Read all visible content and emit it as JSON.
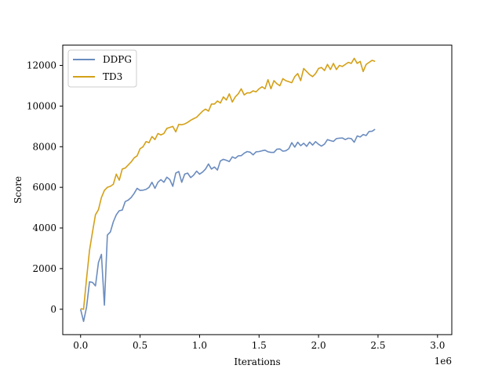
{
  "chart_data": {
    "type": "line",
    "xlabel": "Iterations",
    "ylabel": "Score",
    "x_offset_label": "1e6",
    "xlim": [
      -0.15,
      3.12
    ],
    "ylim": [
      -1250,
      13000
    ],
    "xticks": [
      0.0,
      0.5,
      1.0,
      1.5,
      2.0,
      2.5,
      3.0
    ],
    "xtick_labels": [
      "0.0",
      "0.5",
      "1.0",
      "1.5",
      "2.0",
      "2.5",
      "3.0"
    ],
    "yticks": [
      0,
      2000,
      4000,
      6000,
      8000,
      10000,
      12000
    ],
    "ytick_labels": [
      "0",
      "2000",
      "4000",
      "6000",
      "8000",
      "10000",
      "12000"
    ],
    "legend_position": "upper-left",
    "series": [
      {
        "name": "DDPG",
        "color": "#6b8cbf",
        "points": [
          [
            0.0,
            0
          ],
          [
            0.025,
            -600
          ],
          [
            0.05,
            100
          ],
          [
            0.075,
            1350
          ],
          [
            0.1,
            1320
          ],
          [
            0.125,
            1150
          ],
          [
            0.15,
            2300
          ],
          [
            0.175,
            2700
          ],
          [
            0.2,
            200
          ],
          [
            0.225,
            3650
          ],
          [
            0.25,
            3800
          ],
          [
            0.275,
            4300
          ],
          [
            0.3,
            4650
          ],
          [
            0.325,
            4850
          ],
          [
            0.35,
            4880
          ],
          [
            0.375,
            5300
          ],
          [
            0.4,
            5370
          ],
          [
            0.425,
            5500
          ],
          [
            0.45,
            5700
          ],
          [
            0.475,
            5950
          ],
          [
            0.5,
            5850
          ],
          [
            0.525,
            5860
          ],
          [
            0.55,
            5900
          ],
          [
            0.575,
            6000
          ],
          [
            0.6,
            6250
          ],
          [
            0.625,
            5950
          ],
          [
            0.65,
            6250
          ],
          [
            0.675,
            6380
          ],
          [
            0.7,
            6250
          ],
          [
            0.725,
            6500
          ],
          [
            0.75,
            6380
          ],
          [
            0.775,
            6050
          ],
          [
            0.8,
            6700
          ],
          [
            0.825,
            6780
          ],
          [
            0.85,
            6250
          ],
          [
            0.875,
            6650
          ],
          [
            0.9,
            6700
          ],
          [
            0.925,
            6480
          ],
          [
            0.95,
            6600
          ],
          [
            0.975,
            6800
          ],
          [
            1.0,
            6650
          ],
          [
            1.025,
            6750
          ],
          [
            1.05,
            6900
          ],
          [
            1.075,
            7150
          ],
          [
            1.1,
            6900
          ],
          [
            1.125,
            7000
          ],
          [
            1.15,
            6850
          ],
          [
            1.175,
            7300
          ],
          [
            1.2,
            7380
          ],
          [
            1.225,
            7330
          ],
          [
            1.25,
            7270
          ],
          [
            1.275,
            7500
          ],
          [
            1.3,
            7430
          ],
          [
            1.325,
            7550
          ],
          [
            1.35,
            7560
          ],
          [
            1.375,
            7680
          ],
          [
            1.4,
            7760
          ],
          [
            1.425,
            7730
          ],
          [
            1.45,
            7600
          ],
          [
            1.475,
            7750
          ],
          [
            1.5,
            7760
          ],
          [
            1.525,
            7800
          ],
          [
            1.55,
            7830
          ],
          [
            1.575,
            7750
          ],
          [
            1.6,
            7720
          ],
          [
            1.625,
            7720
          ],
          [
            1.65,
            7880
          ],
          [
            1.675,
            7890
          ],
          [
            1.7,
            7780
          ],
          [
            1.725,
            7800
          ],
          [
            1.75,
            7900
          ],
          [
            1.775,
            8200
          ],
          [
            1.8,
            7980
          ],
          [
            1.825,
            8220
          ],
          [
            1.85,
            8050
          ],
          [
            1.875,
            8170
          ],
          [
            1.9,
            8020
          ],
          [
            1.925,
            8230
          ],
          [
            1.95,
            8080
          ],
          [
            1.975,
            8250
          ],
          [
            2.0,
            8120
          ],
          [
            2.025,
            8030
          ],
          [
            2.05,
            8130
          ],
          [
            2.075,
            8350
          ],
          [
            2.1,
            8300
          ],
          [
            2.125,
            8260
          ],
          [
            2.15,
            8400
          ],
          [
            2.175,
            8420
          ],
          [
            2.2,
            8430
          ],
          [
            2.225,
            8350
          ],
          [
            2.25,
            8420
          ],
          [
            2.275,
            8400
          ],
          [
            2.3,
            8220
          ],
          [
            2.325,
            8530
          ],
          [
            2.35,
            8480
          ],
          [
            2.375,
            8600
          ],
          [
            2.4,
            8550
          ],
          [
            2.425,
            8750
          ],
          [
            2.45,
            8760
          ],
          [
            2.475,
            8860
          ]
        ]
      },
      {
        "name": "TD3",
        "color": "#d4a017",
        "points": [
          [
            0.0,
            30
          ],
          [
            0.025,
            0
          ],
          [
            0.05,
            1500
          ],
          [
            0.075,
            2900
          ],
          [
            0.1,
            3800
          ],
          [
            0.125,
            4650
          ],
          [
            0.15,
            4900
          ],
          [
            0.175,
            5500
          ],
          [
            0.2,
            5850
          ],
          [
            0.225,
            6000
          ],
          [
            0.25,
            6050
          ],
          [
            0.275,
            6150
          ],
          [
            0.3,
            6650
          ],
          [
            0.325,
            6350
          ],
          [
            0.35,
            6900
          ],
          [
            0.375,
            6950
          ],
          [
            0.4,
            7100
          ],
          [
            0.425,
            7250
          ],
          [
            0.45,
            7450
          ],
          [
            0.475,
            7550
          ],
          [
            0.5,
            7900
          ],
          [
            0.525,
            8000
          ],
          [
            0.55,
            8250
          ],
          [
            0.575,
            8200
          ],
          [
            0.6,
            8500
          ],
          [
            0.625,
            8350
          ],
          [
            0.65,
            8650
          ],
          [
            0.675,
            8580
          ],
          [
            0.7,
            8650
          ],
          [
            0.725,
            8900
          ],
          [
            0.75,
            8950
          ],
          [
            0.775,
            9000
          ],
          [
            0.8,
            8730
          ],
          [
            0.825,
            9100
          ],
          [
            0.85,
            9080
          ],
          [
            0.875,
            9120
          ],
          [
            0.9,
            9200
          ],
          [
            0.925,
            9300
          ],
          [
            0.95,
            9380
          ],
          [
            0.975,
            9450
          ],
          [
            1.0,
            9600
          ],
          [
            1.025,
            9750
          ],
          [
            1.05,
            9850
          ],
          [
            1.075,
            9750
          ],
          [
            1.1,
            10100
          ],
          [
            1.125,
            10100
          ],
          [
            1.15,
            10250
          ],
          [
            1.175,
            10150
          ],
          [
            1.2,
            10450
          ],
          [
            1.225,
            10300
          ],
          [
            1.25,
            10600
          ],
          [
            1.275,
            10200
          ],
          [
            1.3,
            10450
          ],
          [
            1.325,
            10600
          ],
          [
            1.35,
            10850
          ],
          [
            1.375,
            10550
          ],
          [
            1.4,
            10650
          ],
          [
            1.425,
            10650
          ],
          [
            1.45,
            10750
          ],
          [
            1.475,
            10700
          ],
          [
            1.5,
            10850
          ],
          [
            1.525,
            10950
          ],
          [
            1.55,
            10850
          ],
          [
            1.575,
            11300
          ],
          [
            1.6,
            10850
          ],
          [
            1.625,
            11250
          ],
          [
            1.65,
            11100
          ],
          [
            1.675,
            11000
          ],
          [
            1.7,
            11350
          ],
          [
            1.725,
            11250
          ],
          [
            1.75,
            11200
          ],
          [
            1.775,
            11150
          ],
          [
            1.8,
            11450
          ],
          [
            1.825,
            11600
          ],
          [
            1.85,
            11250
          ],
          [
            1.875,
            11850
          ],
          [
            1.9,
            11700
          ],
          [
            1.925,
            11550
          ],
          [
            1.95,
            11450
          ],
          [
            1.975,
            11600
          ],
          [
            2.0,
            11850
          ],
          [
            2.025,
            11900
          ],
          [
            2.05,
            11750
          ],
          [
            2.075,
            12050
          ],
          [
            2.1,
            11800
          ],
          [
            2.125,
            12100
          ],
          [
            2.15,
            11800
          ],
          [
            2.175,
            12000
          ],
          [
            2.2,
            11950
          ],
          [
            2.225,
            12050
          ],
          [
            2.25,
            12150
          ],
          [
            2.275,
            12100
          ],
          [
            2.3,
            12350
          ],
          [
            2.325,
            12100
          ],
          [
            2.35,
            12200
          ],
          [
            2.375,
            11700
          ],
          [
            2.4,
            12050
          ],
          [
            2.425,
            12150
          ],
          [
            2.45,
            12250
          ],
          [
            2.475,
            12200
          ]
        ]
      }
    ]
  }
}
